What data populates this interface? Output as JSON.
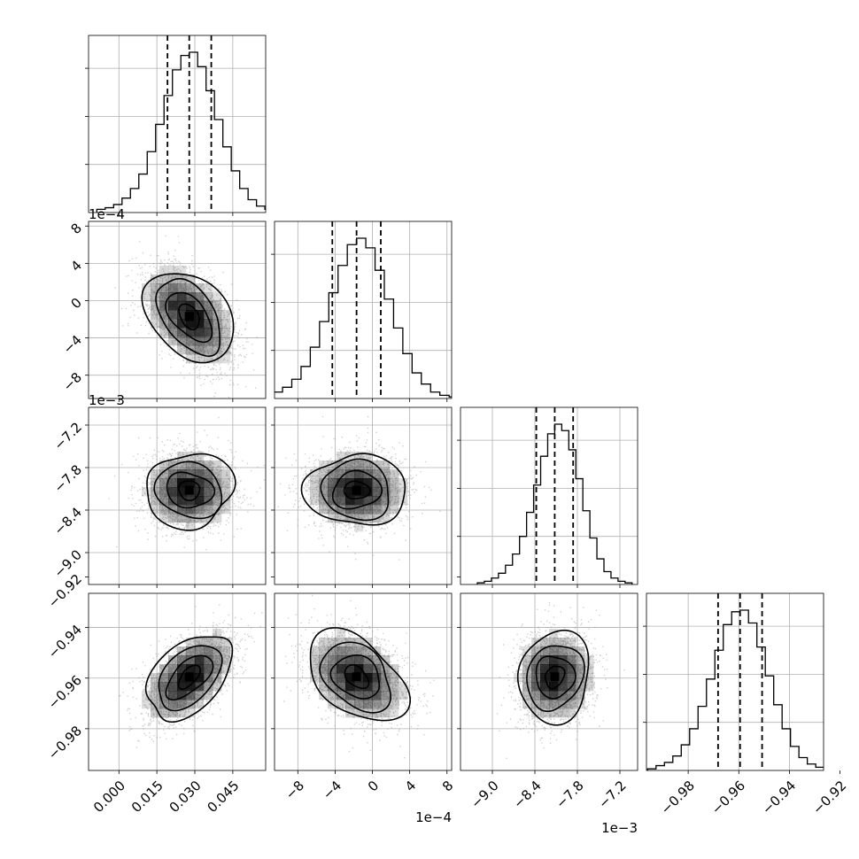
{
  "chart_data": {
    "type": "corner",
    "grid": true,
    "parameters": [
      {
        "id": "p0",
        "range": [
          -0.012,
          0.058
        ],
        "ticks": [
          0.0,
          0.015,
          0.03,
          0.045
        ],
        "tick_labels": [
          "0.000",
          "0.015",
          "0.030",
          "0.045"
        ],
        "exponent": "",
        "median": 0.0278,
        "q16": 0.0192,
        "q84": 0.0365,
        "sigma": 0.0087
      },
      {
        "id": "p1",
        "range": [
          -0.00105,
          0.00085
        ],
        "ticks": [
          -0.0008,
          -0.0004,
          0.0,
          0.0004,
          0.0008
        ],
        "tick_labels": [
          "−8",
          "−4",
          "0",
          "4",
          "8"
        ],
        "exponent": "1e−4",
        "median": -0.00017,
        "q16": -0.00043,
        "q84": 9e-05,
        "sigma": 0.00026
      },
      {
        "id": "p2",
        "range": [
          -0.00945,
          -0.00695
        ],
        "ticks": [
          -0.009,
          -0.0084,
          -0.0078,
          -0.0072
        ],
        "tick_labels": [
          "−9.0",
          "−8.4",
          "−7.8",
          "−7.2"
        ],
        "exponent": "1e−3",
        "median": -0.00812,
        "q16": -0.00838,
        "q84": -0.00786,
        "sigma": 0.00026
      },
      {
        "id": "p3",
        "range": [
          -0.9965,
          -0.9265
        ],
        "ticks": [
          -0.98,
          -0.96,
          -0.94,
          -0.92
        ],
        "tick_labels": [
          "−0.98",
          "−0.96",
          "−0.94",
          "−0.92"
        ],
        "exponent": "",
        "median": -0.9595,
        "q16": -0.9682,
        "q84": -0.9508,
        "sigma": 0.0087
      }
    ],
    "histograms": [
      {
        "param": "p0",
        "heights": [
          2,
          3,
          5,
          9,
          15,
          24,
          38,
          55,
          73,
          89,
          98,
          100,
          91,
          76,
          58,
          41,
          26,
          15,
          8,
          4,
          2,
          1
        ]
      },
      {
        "param": "p1",
        "heights": [
          1,
          2,
          4,
          7,
          12,
          20,
          32,
          48,
          66,
          83,
          96,
          100,
          94,
          80,
          62,
          44,
          28,
          16,
          9,
          4,
          2,
          1
        ]
      },
      {
        "param": "p2",
        "heights": [
          1,
          2,
          4,
          7,
          12,
          19,
          30,
          45,
          62,
          80,
          94,
          100,
          96,
          84,
          66,
          46,
          29,
          16,
          8,
          4,
          2,
          1
        ]
      },
      {
        "param": "p3",
        "heights": [
          1,
          3,
          5,
          9,
          16,
          26,
          40,
          57,
          75,
          91,
          99,
          100,
          92,
          77,
          59,
          41,
          26,
          15,
          8,
          4,
          2,
          1
        ]
      }
    ],
    "correlations": [
      {
        "x": "p0",
        "y": "p1",
        "rho": -0.45
      },
      {
        "x": "p0",
        "y": "p2",
        "rho": 0.0
      },
      {
        "x": "p1",
        "y": "p2",
        "rho": 0.0
      },
      {
        "x": "p0",
        "y": "p3",
        "rho": 0.55
      },
      {
        "x": "p1",
        "y": "p3",
        "rho": -0.35
      },
      {
        "x": "p2",
        "y": "p3",
        "rho": 0.05
      }
    ],
    "contour_levels_sigma": [
      0.5,
      1.0,
      1.5,
      2.0
    ],
    "colors": {
      "hist": "#000000",
      "quantile": "#000000",
      "scatter": "#9a9a9a",
      "grid": "#b0b0b0",
      "density": "#000000"
    }
  }
}
